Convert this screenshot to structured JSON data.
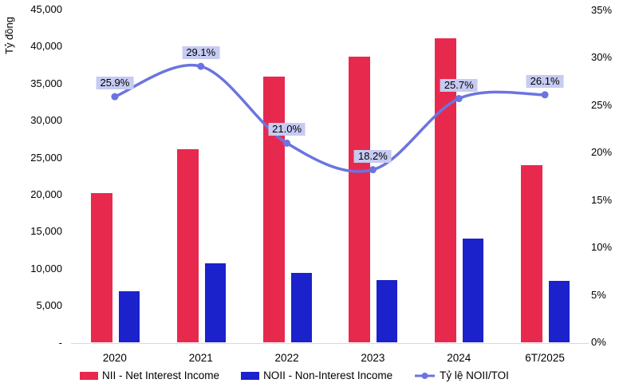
{
  "chart_data": {
    "type": "combo-bar-line",
    "categories": [
      "2020",
      "2021",
      "2022",
      "2023",
      "2024",
      "6T/2025"
    ],
    "left_axis": {
      "title": "Tỷ đồng",
      "tick_labels": [
        "45,000",
        "40,000",
        "35,000",
        "30,000",
        "25,000",
        "20,000",
        "15,000",
        "10,000",
        "5,000",
        "-"
      ],
      "min": 0,
      "max": 45000,
      "step": 5000
    },
    "right_axis": {
      "tick_labels": [
        "35%",
        "30%",
        "25%",
        "20%",
        "15%",
        "10%",
        "5%",
        "0%"
      ],
      "min": 0,
      "max": 35,
      "step": 5,
      "unit": "%"
    },
    "series": [
      {
        "name": "NII - Net Interest Income",
        "type": "bar",
        "axis": "left",
        "color": "#E8294E",
        "values": [
          20200,
          26100,
          35900,
          38600,
          41100,
          24000
        ]
      },
      {
        "name": "NOII - Non-Interest Income",
        "type": "bar",
        "axis": "left",
        "color": "#1B21CB",
        "values": [
          7000,
          10700,
          9400,
          8500,
          14100,
          8400
        ]
      },
      {
        "name": "Tỷ lệ NOII/TOI",
        "type": "line",
        "axis": "right",
        "color": "#6B74DF",
        "values": [
          25.9,
          29.1,
          21.0,
          18.2,
          25.7,
          26.1
        ],
        "data_labels": [
          "25.9%",
          "29.1%",
          "21.0%",
          "18.2%",
          "25.7%",
          "26.1%"
        ],
        "label_bg": "#C6CBF2"
      }
    ],
    "gridlines": false,
    "legend_position": "bottom"
  },
  "colors": {
    "axis_line": "#D9D9D9",
    "text": "#000000",
    "background": "#FFFFFF"
  }
}
